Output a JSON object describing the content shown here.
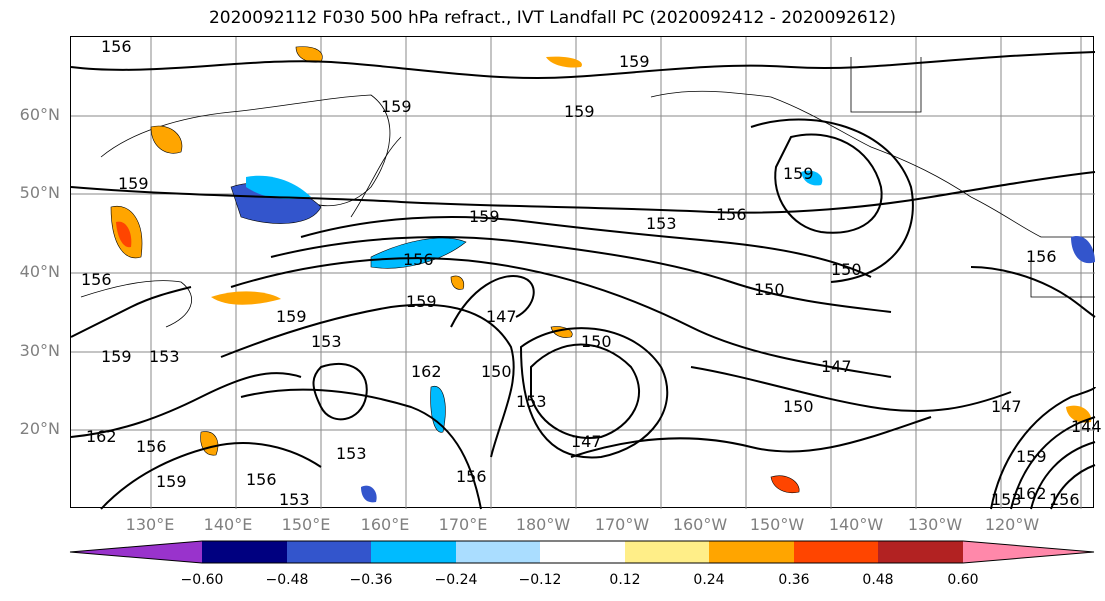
{
  "title": "2020092112 F030 500 hPa refract., IVT Landfall PC (2020092412 - 2020092612)",
  "lat_labels": [
    "60°N",
    "50°N",
    "40°N",
    "30°N",
    "20°N"
  ],
  "lon_labels": [
    "130°E",
    "140°E",
    "150°E",
    "160°E",
    "170°E",
    "180°W",
    "170°W",
    "160°W",
    "150°W",
    "140°W",
    "130°W",
    "120°W"
  ],
  "colorbar": {
    "tick_labels": [
      "−0.60",
      "−0.48",
      "−0.36",
      "−0.24",
      "−0.12",
      "0.12",
      "0.24",
      "0.36",
      "0.48",
      "0.60"
    ],
    "colors": [
      "#9933cc",
      "#000080",
      "#3355cc",
      "#00bbff",
      "#aaddff",
      "#ffffff",
      "#ffee88",
      "#ffa500",
      "#ff4500",
      "#b22222",
      "#ff88aa"
    ]
  },
  "contour_labels": [
    "156",
    "159",
    "159",
    "159",
    "159",
    "153",
    "156",
    "159",
    "150",
    "156",
    "159",
    "147",
    "153",
    "150",
    "159",
    "156",
    "159",
    "153",
    "162",
    "150",
    "153",
    "147",
    "150",
    "147",
    "147",
    "144",
    "159",
    "162",
    "156",
    "159",
    "153",
    "156",
    "153",
    "156",
    "162",
    "153",
    "156",
    "150",
    "156",
    "159"
  ]
}
